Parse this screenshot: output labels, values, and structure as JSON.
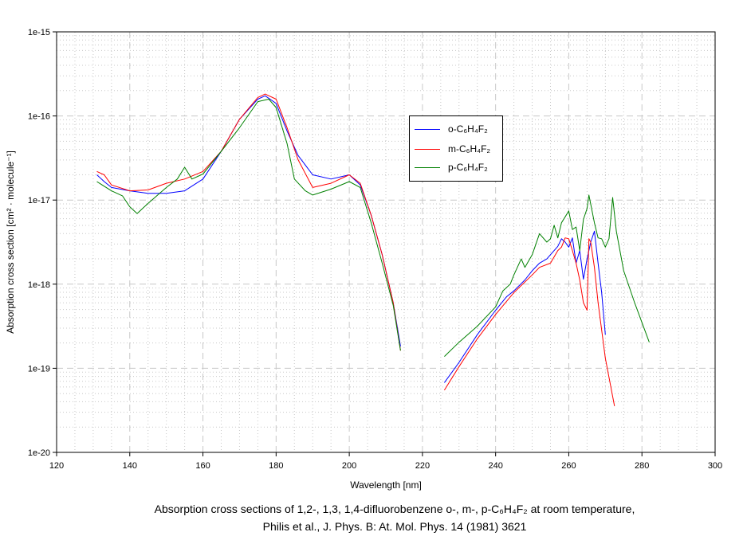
{
  "chart_data": {
    "type": "line",
    "xlabel": "Wavelength [nm]",
    "ylabel": "Absorption cross section [cm² · molecule⁻¹]",
    "xlim": [
      120,
      300
    ],
    "ylim_log10": [
      -20,
      -15
    ],
    "yscale": "log",
    "grid": true,
    "legend_placement": "center-right",
    "x_ticks": [
      "120",
      "140",
      "160",
      "180",
      "200",
      "220",
      "240",
      "260",
      "280",
      "300"
    ],
    "y_ticks": [
      "1e-20",
      "1e-19",
      "1e-18",
      "1e-17",
      "1e-16",
      "1e-15"
    ],
    "series": [
      {
        "name": "o-C₆H₄F₂",
        "color": "#0000ff",
        "segments": [
          [
            [
              131,
              -16.7
            ],
            [
              133,
              -16.78
            ],
            [
              135,
              -16.85
            ],
            [
              140,
              -16.89
            ],
            [
              145,
              -16.92
            ],
            [
              150,
              -16.92
            ],
            [
              155,
              -16.89
            ],
            [
              160,
              -16.75
            ],
            [
              165,
              -16.42
            ],
            [
              170,
              -16.04
            ],
            [
              175,
              -15.8
            ],
            [
              177,
              -15.76
            ],
            [
              180,
              -15.85
            ],
            [
              183,
              -16.18
            ],
            [
              186,
              -16.47
            ],
            [
              190,
              -16.7
            ],
            [
              195,
              -16.75
            ],
            [
              200,
              -16.7
            ],
            [
              203,
              -16.82
            ],
            [
              206,
              -17.18
            ],
            [
              209,
              -17.65
            ],
            [
              212,
              -18.22
            ],
            [
              214,
              -18.74
            ]
          ],
          [
            [
              226,
              -19.17
            ],
            [
              230,
              -18.93
            ],
            [
              235,
              -18.6
            ],
            [
              240,
              -18.31
            ],
            [
              243,
              -18.15
            ],
            [
              245,
              -18.08
            ],
            [
              248,
              -17.95
            ],
            [
              250,
              -17.84
            ],
            [
              252,
              -17.75
            ],
            [
              254,
              -17.7
            ],
            [
              255,
              -17.65
            ],
            [
              257,
              -17.55
            ],
            [
              258,
              -17.46
            ],
            [
              259,
              -17.5
            ],
            [
              260,
              -17.56
            ],
            [
              261,
              -17.45
            ],
            [
              262,
              -17.75
            ],
            [
              263,
              -17.6
            ],
            [
              264,
              -17.94
            ],
            [
              265,
              -17.7
            ],
            [
              266,
              -17.5
            ],
            [
              267,
              -17.37
            ],
            [
              268,
              -17.75
            ],
            [
              269,
              -18.1
            ],
            [
              270,
              -18.6
            ]
          ]
        ]
      },
      {
        "name": "m-C₆H₄F₂",
        "color": "#ff0000",
        "segments": [
          [
            [
              131,
              -16.66
            ],
            [
              133,
              -16.7
            ],
            [
              135,
              -16.82
            ],
            [
              140,
              -16.89
            ],
            [
              145,
              -16.88
            ],
            [
              150,
              -16.8
            ],
            [
              155,
              -16.75
            ],
            [
              160,
              -16.66
            ],
            [
              165,
              -16.42
            ],
            [
              170,
              -16.04
            ],
            [
              175,
              -15.78
            ],
            [
              177,
              -15.74
            ],
            [
              180,
              -15.8
            ],
            [
              183,
              -16.14
            ],
            [
              186,
              -16.52
            ],
            [
              190,
              -16.85
            ],
            [
              195,
              -16.8
            ],
            [
              200,
              -16.7
            ],
            [
              203,
              -16.8
            ],
            [
              206,
              -17.18
            ],
            [
              209,
              -17.65
            ],
            [
              212,
              -18.22
            ],
            [
              214,
              -18.79
            ]
          ],
          [
            [
              226,
              -19.26
            ],
            [
              230,
              -18.98
            ],
            [
              235,
              -18.65
            ],
            [
              240,
              -18.36
            ],
            [
              245,
              -18.1
            ],
            [
              250,
              -17.89
            ],
            [
              252,
              -17.8
            ],
            [
              255,
              -17.75
            ],
            [
              257,
              -17.6
            ],
            [
              258,
              -17.56
            ],
            [
              259,
              -17.45
            ],
            [
              260,
              -17.46
            ],
            [
              261,
              -17.6
            ],
            [
              262,
              -17.75
            ],
            [
              263,
              -17.95
            ],
            [
              264,
              -18.22
            ],
            [
              265,
              -18.31
            ],
            [
              265.5,
              -17.46
            ],
            [
              266,
              -17.5
            ],
            [
              267,
              -17.8
            ],
            [
              268,
              -18.22
            ],
            [
              270,
              -18.88
            ],
            [
              272.5,
              -19.45
            ]
          ]
        ]
      },
      {
        "name": "p-C₆H₄F₂",
        "color": "#008000",
        "segments": [
          [
            [
              131,
              -16.78
            ],
            [
              135,
              -16.89
            ],
            [
              138,
              -16.95
            ],
            [
              140,
              -17.08
            ],
            [
              142,
              -17.16
            ],
            [
              145,
              -17.04
            ],
            [
              150,
              -16.85
            ],
            [
              153,
              -16.75
            ],
            [
              155,
              -16.61
            ],
            [
              157,
              -16.75
            ],
            [
              160,
              -16.69
            ],
            [
              165,
              -16.42
            ],
            [
              170,
              -16.14
            ],
            [
              175,
              -15.83
            ],
            [
              178,
              -15.8
            ],
            [
              180,
              -15.9
            ],
            [
              183,
              -16.33
            ],
            [
              185,
              -16.75
            ],
            [
              188,
              -16.89
            ],
            [
              190,
              -16.94
            ],
            [
              195,
              -16.87
            ],
            [
              200,
              -16.78
            ],
            [
              203,
              -16.85
            ],
            [
              206,
              -17.27
            ],
            [
              209,
              -17.75
            ],
            [
              212,
              -18.25
            ],
            [
              214,
              -18.79
            ]
          ],
          [
            [
              226,
              -18.86
            ],
            [
              230,
              -18.69
            ],
            [
              235,
              -18.5
            ],
            [
              240,
              -18.27
            ],
            [
              242,
              -18.08
            ],
            [
              244,
              -18.0
            ],
            [
              245,
              -17.89
            ],
            [
              247,
              -17.7
            ],
            [
              248,
              -17.8
            ],
            [
              250,
              -17.65
            ],
            [
              252,
              -17.4
            ],
            [
              254,
              -17.5
            ],
            [
              255,
              -17.46
            ],
            [
              256,
              -17.3
            ],
            [
              257,
              -17.45
            ],
            [
              258,
              -17.27
            ],
            [
              259,
              -17.2
            ],
            [
              260,
              -17.13
            ],
            [
              261,
              -17.35
            ],
            [
              262,
              -17.32
            ],
            [
              263,
              -17.6
            ],
            [
              264,
              -17.23
            ],
            [
              265,
              -17.1
            ],
            [
              265.5,
              -16.94
            ],
            [
              266,
              -17.05
            ],
            [
              267,
              -17.27
            ],
            [
              268,
              -17.45
            ],
            [
              269,
              -17.46
            ],
            [
              270,
              -17.56
            ],
            [
              271,
              -17.46
            ],
            [
              272,
              -16.97
            ],
            [
              273,
              -17.37
            ],
            [
              275,
              -17.84
            ],
            [
              278,
              -18.22
            ],
            [
              282,
              -18.69
            ]
          ]
        ]
      }
    ]
  },
  "caption": {
    "line1": "Absorption cross sections of 1,2-, 1,3, 1,4-difluorobenzene o-, m-, p-C₆H₄F₂ at room temperature,",
    "line2": "Philis et al., J. Phys. B: At. Mol. Phys. 14 (1981) 3621"
  }
}
